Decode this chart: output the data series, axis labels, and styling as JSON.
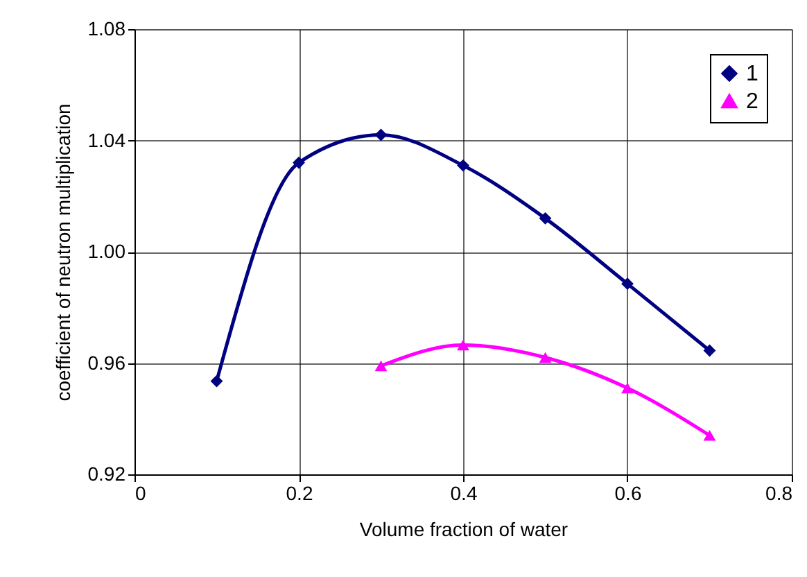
{
  "chart_data": {
    "type": "line",
    "xlabel": "Volume fraction of water",
    "ylabel": "coefficient of neutron multiplication",
    "xlim": [
      0,
      0.8
    ],
    "xticks": [
      0,
      0.2,
      0.4,
      0.6,
      0.8
    ],
    "ylim": [
      0.92,
      1.08
    ],
    "yticks": [
      0.92,
      0.96,
      {
        "value": 1.0,
        "label": "1.00"
      },
      1.04,
      1.08
    ],
    "grid": true,
    "legend": "top right",
    "series": [
      {
        "name": "1",
        "color": "#000080",
        "marker": "diamond",
        "x": [
          0.1,
          0.2,
          0.3,
          0.4,
          0.5,
          0.6,
          0.7
        ],
        "values": [
          0.9535,
          1.032,
          1.042,
          1.031,
          1.012,
          0.9885,
          0.9645
        ]
      },
      {
        "name": "2",
        "color": "#ff00ff",
        "marker": "triangle",
        "x": [
          0.3,
          0.4,
          0.5,
          0.6,
          0.7
        ],
        "values": [
          0.959,
          0.9665,
          0.962,
          0.951,
          0.934
        ]
      }
    ]
  }
}
